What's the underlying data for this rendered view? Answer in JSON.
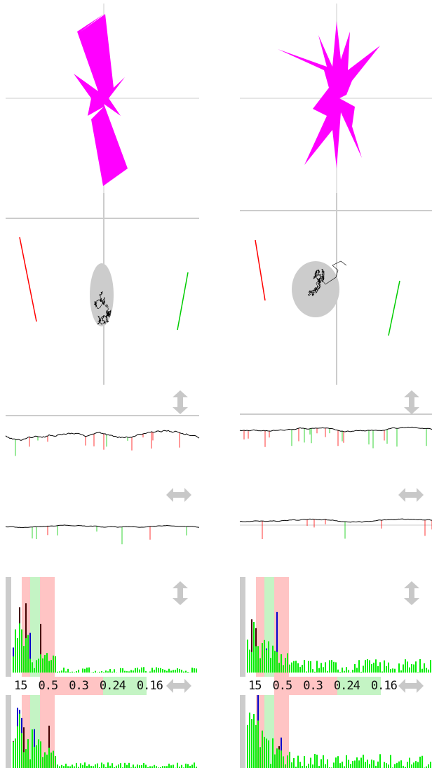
{
  "spectrum": {
    "tick_labels": [
      "15",
      "0.5",
      "0.3",
      "0.24",
      "0.16"
    ]
  },
  "colors": {
    "rose": "#ff00ff",
    "axis": "#cccccc",
    "trace": "#000000",
    "marker_left": "#ff0000",
    "marker_right": "#00cc00",
    "ellipse": "#cccccc",
    "bar_green": "#00ee00",
    "bar_blue": "#0000cc",
    "bar_dark": "#440000",
    "band_pink": "#ffc4c4",
    "band_green": "#c4f4c4"
  },
  "icons": {
    "vertical_resize": "updown-arrow-icon",
    "horizontal_resize": "leftright-arrow-icon"
  },
  "columns": [
    {
      "id": "left",
      "seed": 7
    },
    {
      "id": "right",
      "seed": 23
    }
  ]
}
